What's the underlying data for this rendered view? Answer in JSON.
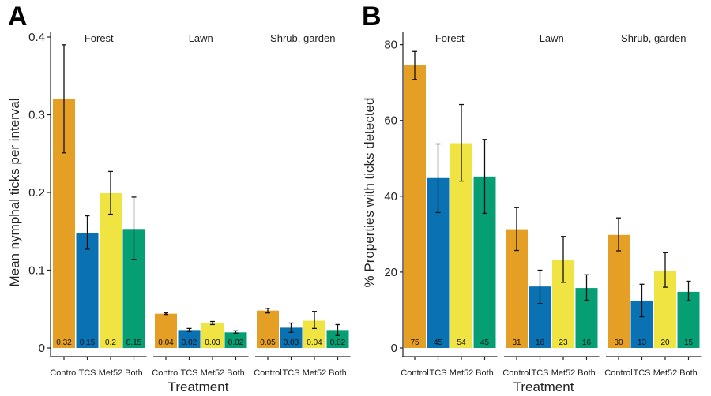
{
  "treatments": [
    "Control",
    "TCS",
    "Met52",
    "Both"
  ],
  "colors": {
    "Control": "#e69f25",
    "TCS": "#0a72b2",
    "Met52": "#f0e442",
    "Both": "#069e73"
  },
  "chart_data": [
    {
      "type": "bar",
      "panel": "A",
      "ylabel": "Mean nymphal ticks per interval",
      "xlabel": "Treatment",
      "ylim": [
        0,
        0.4
      ],
      "yticks": [
        0,
        0.1,
        0.2,
        0.3,
        0.4
      ],
      "ytick_labels": [
        "0",
        "0.1",
        "0.2",
        "0.3",
        "0.4"
      ],
      "facets": [
        {
          "name": "Forest",
          "values": [
            0.32,
            0.148,
            0.199,
            0.153
          ],
          "lower": [
            0.251,
            0.127,
            0.172,
            0.114
          ],
          "upper": [
            0.39,
            0.17,
            0.227,
            0.194
          ],
          "labels": [
            "0.32",
            "0.15",
            "0.2",
            "0.15"
          ]
        },
        {
          "name": "Lawn",
          "values": [
            0.044,
            0.023,
            0.032,
            0.02
          ],
          "lower": [
            0.043,
            0.021,
            0.03,
            0.019
          ],
          "upper": [
            0.045,
            0.025,
            0.034,
            0.022
          ],
          "labels": [
            "0.04",
            "0.02",
            "0.03",
            "0.02"
          ]
        },
        {
          "name": "Shrub, garden",
          "values": [
            0.048,
            0.026,
            0.035,
            0.023
          ],
          "lower": [
            0.045,
            0.02,
            0.025,
            0.016
          ],
          "upper": [
            0.051,
            0.032,
            0.047,
            0.03
          ],
          "labels": [
            "0.05",
            "0.03",
            "0.04",
            "0.02"
          ]
        }
      ]
    },
    {
      "type": "bar",
      "panel": "B",
      "ylabel": "% Properties with  ticks detected",
      "xlabel": "Treatment",
      "ylim": [
        0,
        82
      ],
      "yticks": [
        0,
        20,
        40,
        60,
        80
      ],
      "ytick_labels": [
        "0",
        "20",
        "40",
        "60",
        "80"
      ],
      "facets": [
        {
          "name": "Forest",
          "values": [
            74.5,
            44.8,
            54,
            45.2
          ],
          "lower": [
            70.8,
            35.7,
            44,
            35.5
          ],
          "upper": [
            78.2,
            53.8,
            64.2,
            55
          ],
          "labels": [
            "75",
            "45",
            "54",
            "45"
          ]
        },
        {
          "name": "Lawn",
          "values": [
            31.3,
            16.2,
            23.2,
            15.8
          ],
          "lower": [
            25.7,
            11.7,
            17.3,
            12.6
          ],
          "upper": [
            37,
            20.5,
            29.4,
            19.3
          ],
          "labels": [
            "31",
            "16",
            "23",
            "16"
          ]
        },
        {
          "name": "Shrub, garden",
          "values": [
            29.8,
            12.5,
            20.3,
            14.8
          ],
          "lower": [
            25.6,
            8.2,
            16,
            12.5
          ],
          "upper": [
            34.3,
            16.8,
            25.1,
            17.6
          ],
          "labels": [
            "30",
            "13",
            "20",
            "15"
          ]
        }
      ]
    }
  ]
}
